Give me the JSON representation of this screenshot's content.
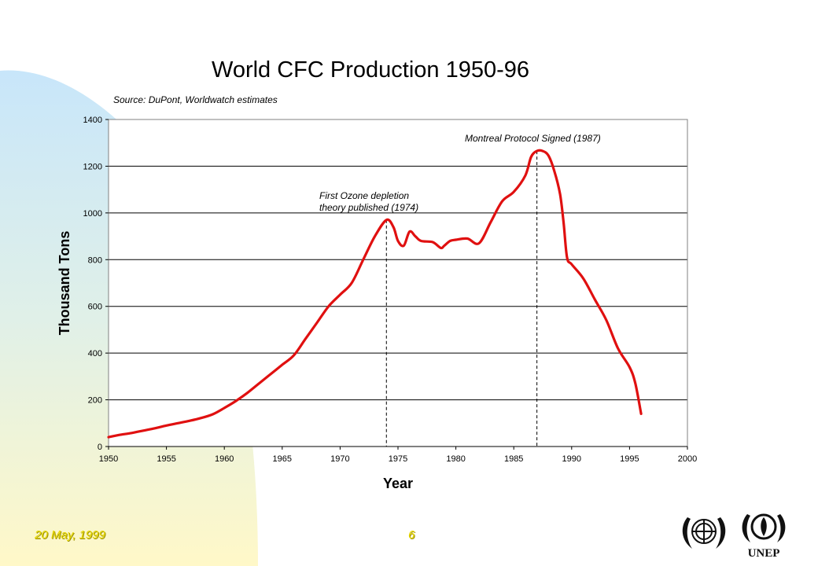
{
  "slide": {
    "date": "20 May, 1999",
    "page_number": "6",
    "logo_unep_text": "UNEP",
    "colors": {
      "background_gradient_top": "#c8e6fa",
      "background_gradient_bottom": "#fff8c8",
      "line": "#e01010",
      "footer_text": "#e8d800"
    }
  },
  "chart_data": {
    "type": "line",
    "title": "World CFC Production 1950-96",
    "subtitle": "Source: DuPont, Worldwatch estimates",
    "xlabel": "Year",
    "ylabel": "Thousand Tons",
    "xlim": [
      1950,
      2000
    ],
    "ylim": [
      0,
      1400
    ],
    "x_ticks": [
      "1950",
      "1955",
      "1960",
      "1965",
      "1970",
      "1975",
      "1980",
      "1985",
      "1990",
      "1995",
      "2000"
    ],
    "y_ticks": [
      "0",
      "200",
      "400",
      "600",
      "800",
      "1000",
      "1200",
      "1400"
    ],
    "grid": "horizontal",
    "legend": "none",
    "series": [
      {
        "color": "#e01010",
        "x": [
          1950,
          1951,
          1952,
          1953,
          1954,
          1955,
          1956,
          1957,
          1958,
          1959,
          1960,
          1961,
          1962,
          1963,
          1964,
          1965,
          1966,
          1967,
          1968,
          1969,
          1970,
          1971,
          1972,
          1973,
          1974,
          1974.6,
          1975,
          1975.5,
          1976,
          1976.5,
          1977,
          1978,
          1978.7,
          1979,
          1979.5,
          1980,
          1981,
          1982,
          1983,
          1984,
          1985,
          1986,
          1986.5,
          1987,
          1987.5,
          1988,
          1988.5,
          1989,
          1989.3,
          1989.6,
          1990,
          1991,
          1992,
          1993,
          1994,
          1995,
          1995.5,
          1996
        ],
        "y": [
          40,
          50,
          58,
          68,
          78,
          90,
          100,
          110,
          122,
          138,
          165,
          195,
          230,
          270,
          310,
          350,
          390,
          460,
          530,
          600,
          650,
          700,
          800,
          900,
          970,
          940,
          880,
          860,
          920,
          900,
          880,
          875,
          850,
          860,
          880,
          885,
          890,
          870,
          960,
          1050,
          1090,
          1160,
          1240,
          1265,
          1265,
          1245,
          1180,
          1080,
          960,
          810,
          780,
          720,
          630,
          540,
          420,
          340,
          270,
          140
        ]
      }
    ],
    "annotations": [
      {
        "x": 1974,
        "label_lines": [
          "First Ozone depletion",
          "theory published (1974)"
        ]
      },
      {
        "x": 1987,
        "label_lines": [
          "Montreal Protocol Signed (1987)"
        ]
      }
    ]
  }
}
